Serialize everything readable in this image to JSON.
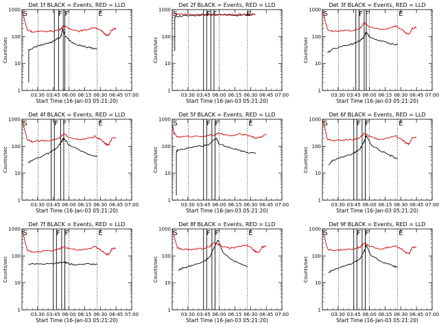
{
  "chart_data": [
    {
      "type": "line",
      "title": "Det 1f BLACK = Events, RED = LLD",
      "xlabel": "Start Time (16-Jan-03 05:21:20)",
      "ylabel": "Counts/sec",
      "y_scale": "log",
      "ylim": [
        1,
        1000
      ],
      "y_ticks": [
        "1",
        "10",
        "100",
        "1000"
      ],
      "xlim_minutes": [
        0,
        105
      ],
      "x_ticks": [
        "03:30",
        "03:45",
        "06:00",
        "06:15",
        "06:30",
        "06:45",
        "07:00"
      ],
      "markers": [
        {
          "label": "S",
          "t": 0
        },
        {
          "label": "F",
          "t": 34
        },
        {
          "label": "F",
          "t": 40
        },
        {
          "label": "E",
          "t": 72
        }
      ],
      "vlines_solid": [
        31,
        35,
        39.5,
        41
      ],
      "vlines_dotted": [
        15.5,
        45,
        72
      ],
      "series": [
        {
          "name": "Events",
          "color": "#000000",
          "x": [
            6.5,
            6.5,
            7,
            15,
            22,
            28,
            33,
            37,
            39,
            41,
            45,
            50,
            58,
            65,
            72
          ],
          "y": [
            2,
            30,
            32,
            45,
            55,
            60,
            80,
            95,
            200,
            110,
            75,
            55,
            45,
            38,
            35
          ]
        },
        {
          "name": "LLD",
          "color": "#cc0000",
          "x": [
            0,
            2,
            5,
            10,
            20,
            30,
            36,
            40,
            45,
            55,
            62,
            70,
            76,
            80,
            83,
            86,
            90
          ],
          "y": [
            1000,
            500,
            180,
            150,
            155,
            160,
            180,
            250,
            200,
            160,
            180,
            220,
            160,
            120,
            110,
            180,
            200
          ]
        }
      ]
    },
    {
      "type": "line",
      "title": "Det 2f BLACK = Events, RED = LLD",
      "xlabel": "Start Time (16-Jan-03 05:21:20)",
      "ylabel": "Counts/sec",
      "y_scale": "log",
      "ylim": [
        1,
        1000
      ],
      "y_ticks": [
        "1",
        "10",
        "100",
        "1000"
      ],
      "xlim_minutes": [
        0,
        105
      ],
      "x_ticks": [
        "03:30",
        "03:45",
        "06:00",
        "06:15",
        "06:30",
        "06:45",
        "07:00"
      ],
      "markers": [
        {
          "label": "S",
          "t": 0
        },
        {
          "label": "F",
          "t": 32
        },
        {
          "label": "F",
          "t": 38
        },
        {
          "label": "E",
          "t": 70
        }
      ],
      "vlines_solid": [
        30,
        33,
        37,
        40
      ],
      "vlines_dotted": [
        15.5,
        45,
        72
      ],
      "series": [
        {
          "name": "Events",
          "color": "#000000",
          "x": [
            2.5,
            2.5,
            3,
            10,
            20,
            30,
            38,
            45,
            55,
            65,
            72,
            78
          ],
          "y": [
            30,
            500,
            560,
            580,
            600,
            620,
            640,
            650,
            640,
            620,
            650,
            660
          ]
        },
        {
          "name": "LLD",
          "color": "#cc0000",
          "x": [
            0,
            10,
            20,
            30,
            40,
            50,
            60,
            70,
            80
          ],
          "y": [
            700,
            680,
            660,
            650,
            650,
            640,
            660,
            650,
            640
          ]
        }
      ]
    },
    {
      "type": "line",
      "title": "Det 3f BLACK = Events, RED = LLD",
      "xlabel": "Start Time (16-Jan-03 05:21:20)",
      "ylabel": "Counts/sec",
      "y_scale": "log",
      "ylim": [
        1,
        1000
      ],
      "y_ticks": [
        "1",
        "10",
        "100",
        "1000"
      ],
      "xlim_minutes": [
        0,
        105
      ],
      "x_ticks": [
        "03:30",
        "03:45",
        "06:00",
        "06:15",
        "06:30",
        "06:45",
        "07:00"
      ],
      "markers": [
        {
          "label": "S",
          "t": 0
        },
        {
          "label": "F",
          "t": 34
        },
        {
          "label": "F",
          "t": 40
        },
        {
          "label": "E",
          "t": 72
        }
      ],
      "vlines_solid": [
        32,
        35,
        40,
        42
      ],
      "vlines_dotted": [
        15.5,
        45,
        72
      ],
      "series": [
        {
          "name": "Events",
          "color": "#000000",
          "x": [
            5,
            10,
            20,
            30,
            36,
            40,
            42,
            46,
            55,
            65,
            72
          ],
          "y": [
            25,
            35,
            45,
            55,
            70,
            100,
            150,
            90,
            70,
            55,
            50
          ]
        },
        {
          "name": "LLD",
          "color": "#cc0000",
          "x": [
            0,
            2,
            5,
            10,
            20,
            30,
            36,
            40,
            45,
            55,
            62,
            70,
            76,
            80,
            83,
            86,
            90
          ],
          "y": [
            1000,
            500,
            180,
            160,
            160,
            170,
            200,
            320,
            230,
            180,
            200,
            250,
            180,
            130,
            120,
            200,
            220
          ]
        }
      ]
    },
    {
      "type": "line",
      "title": "Det 4f BLACK = Events, RED = LLD",
      "xlabel": "Start Time (16-Jan-03 05:21:20)",
      "ylabel": "Counts/sec",
      "y_scale": "log",
      "ylim": [
        1,
        1000
      ],
      "y_ticks": [
        "1",
        "10",
        "100",
        "1000"
      ],
      "xlim_minutes": [
        0,
        105
      ],
      "x_ticks": [
        "03:30",
        "03:45",
        "06:00",
        "06:15",
        "06:30",
        "06:45",
        "07:00"
      ],
      "markers": [
        {
          "label": "S",
          "t": 0
        },
        {
          "label": "F",
          "t": 30
        },
        {
          "label": "F",
          "t": 38
        },
        {
          "label": "E",
          "t": 72
        }
      ],
      "vlines_solid": [
        28,
        31,
        37,
        40
      ],
      "vlines_dotted": [
        15.5,
        45,
        72
      ],
      "series": [
        {
          "name": "Events",
          "color": "#000000",
          "x": [
            6,
            10,
            20,
            28,
            34,
            38,
            40,
            45,
            55,
            65,
            72
          ],
          "y": [
            25,
            30,
            45,
            60,
            90,
            150,
            200,
            110,
            70,
            50,
            40
          ]
        },
        {
          "name": "LLD",
          "color": "#cc0000",
          "x": [
            0,
            2,
            5,
            10,
            20,
            30,
            36,
            40,
            45,
            55,
            62,
            70,
            76,
            80,
            83,
            86,
            90
          ],
          "y": [
            1000,
            500,
            180,
            150,
            160,
            170,
            200,
            280,
            220,
            170,
            190,
            230,
            170,
            120,
            110,
            190,
            210
          ]
        }
      ]
    },
    {
      "type": "line",
      "title": "Det 5f BLACK = Events, RED = LLD",
      "xlabel": "Start Time (16-Jan-03 05:21:20)",
      "ylabel": "Counts/sec",
      "y_scale": "log",
      "ylim": [
        1,
        1000
      ],
      "y_ticks": [
        "1",
        "10",
        "100",
        "1000"
      ],
      "xlim_minutes": [
        0,
        105
      ],
      "x_ticks": [
        "03:30",
        "03:45",
        "06:00",
        "06:15",
        "06:30",
        "06:45",
        "07:00"
      ],
      "markers": [
        {
          "label": "S",
          "t": 0
        },
        {
          "label": "F",
          "t": 32
        },
        {
          "label": "F",
          "t": 40
        },
        {
          "label": "E",
          "t": 72
        }
      ],
      "vlines_solid": [
        30,
        33,
        38,
        41
      ],
      "vlines_dotted": [
        15.5,
        45,
        72
      ],
      "series": [
        {
          "name": "Events",
          "color": "#000000",
          "x": [
            4,
            4,
            5,
            15,
            25,
            35,
            42,
            45,
            55,
            65,
            72,
            80
          ],
          "y": [
            1.5,
            60,
            70,
            85,
            100,
            110,
            200,
            120,
            90,
            70,
            60,
            55
          ]
        },
        {
          "name": "LLD",
          "color": "#cc0000",
          "x": [
            0,
            2,
            5,
            15,
            30,
            40,
            45,
            55,
            65,
            75,
            80,
            85,
            90
          ],
          "y": [
            600,
            300,
            220,
            230,
            240,
            260,
            300,
            240,
            280,
            240,
            200,
            220,
            280
          ]
        }
      ]
    },
    {
      "type": "line",
      "title": "Det 6f BLACK = Events, RED = LLD",
      "xlabel": "Start Time (16-Jan-03 05:21:20)",
      "ylabel": "Counts/sec",
      "y_scale": "log",
      "ylim": [
        1,
        1000
      ],
      "y_ticks": [
        "1",
        "10",
        "100",
        "1000"
      ],
      "xlim_minutes": [
        0,
        105
      ],
      "x_ticks": [
        "03:30",
        "03:45",
        "06:00",
        "06:15",
        "06:30",
        "06:45",
        "07:00"
      ],
      "markers": [
        {
          "label": "S",
          "t": 0
        },
        {
          "label": "F",
          "t": 32
        },
        {
          "label": "F",
          "t": 40
        },
        {
          "label": "E",
          "t": 72
        }
      ],
      "vlines_solid": [
        30,
        33,
        38,
        41
      ],
      "vlines_dotted": [
        15.5,
        45,
        72
      ],
      "series": [
        {
          "name": "Events",
          "color": "#000000",
          "x": [
            6,
            10,
            20,
            30,
            36,
            40,
            42,
            46,
            55,
            65,
            72
          ],
          "y": [
            20,
            30,
            40,
            55,
            80,
            150,
            250,
            120,
            70,
            45,
            35
          ]
        },
        {
          "name": "LLD",
          "color": "#cc0000",
          "x": [
            0,
            2,
            5,
            10,
            20,
            30,
            36,
            40,
            45,
            55,
            62,
            70,
            76,
            80,
            83,
            86,
            90
          ],
          "y": [
            1000,
            500,
            180,
            160,
            170,
            180,
            210,
            300,
            230,
            180,
            200,
            240,
            180,
            130,
            120,
            200,
            220
          ]
        }
      ]
    },
    {
      "type": "line",
      "title": "Det 7f BLACK = Events, RED = LLD",
      "xlabel": "Start Time (16-Jan-03 05:21:20)",
      "ylabel": "Counts/sec",
      "y_scale": "log",
      "ylim": [
        1,
        1000
      ],
      "y_ticks": [
        "1",
        "10",
        "100",
        "1000"
      ],
      "xlim_minutes": [
        0,
        105
      ],
      "x_ticks": [
        "03:30",
        "03:45",
        "06:00",
        "06:15",
        "06:30",
        "06:45",
        "07:00"
      ],
      "markers": [
        {
          "label": "S",
          "t": 0
        },
        {
          "label": "F",
          "t": 32
        },
        {
          "label": "F",
          "t": 40
        },
        {
          "label": "E",
          "t": 72
        }
      ],
      "vlines_solid": [
        30,
        33,
        38,
        41
      ],
      "vlines_dotted": [
        15.5,
        45,
        72
      ],
      "series": [
        {
          "name": "Events",
          "color": "#000000",
          "x": [
            6,
            15,
            25,
            35,
            41,
            45,
            55,
            65,
            72
          ],
          "y": [
            50,
            52,
            50,
            55,
            60,
            50,
            48,
            50,
            48
          ]
        },
        {
          "name": "LLD",
          "color": "#cc0000",
          "x": [
            0,
            2,
            5,
            10,
            20,
            30,
            36,
            40,
            45,
            55,
            62,
            70,
            76,
            80,
            83,
            86,
            90
          ],
          "y": [
            1000,
            500,
            160,
            140,
            150,
            160,
            180,
            220,
            190,
            160,
            180,
            220,
            160,
            120,
            110,
            180,
            200
          ]
        }
      ]
    },
    {
      "type": "line",
      "title": "Det 8f BLACK = Events, RED = LLD",
      "xlabel": "Start Time (16-Jan-03 05:21:20)",
      "ylabel": "Counts/sec",
      "y_scale": "log",
      "ylim": [
        1,
        1000
      ],
      "y_ticks": [
        "1",
        "10",
        "100",
        "1000"
      ],
      "xlim_minutes": [
        0,
        105
      ],
      "x_ticks": [
        "03:30",
        "03:45",
        "06:00",
        "06:15",
        "06:30",
        "06:45",
        "07:00"
      ],
      "markers": [
        {
          "label": "S",
          "t": 0
        },
        {
          "label": "F",
          "t": 32
        },
        {
          "label": "F",
          "t": 40
        },
        {
          "label": "E",
          "t": 72
        }
      ],
      "vlines_solid": [
        30,
        33,
        38,
        41
      ],
      "vlines_dotted": [
        15.5,
        45,
        72
      ],
      "series": [
        {
          "name": "Events",
          "color": "#000000",
          "x": [
            6,
            10,
            20,
            30,
            36,
            40,
            44,
            48,
            55,
            65,
            72
          ],
          "y": [
            30,
            35,
            45,
            60,
            90,
            200,
            400,
            150,
            80,
            50,
            40
          ]
        },
        {
          "name": "LLD",
          "color": "#cc0000",
          "x": [
            0,
            2,
            5,
            10,
            20,
            30,
            36,
            40,
            45,
            55,
            62,
            70,
            76,
            80,
            83,
            86,
            90
          ],
          "y": [
            1000,
            500,
            200,
            170,
            180,
            190,
            220,
            320,
            250,
            190,
            210,
            260,
            190,
            140,
            130,
            210,
            230
          ]
        }
      ]
    },
    {
      "type": "line",
      "title": "Det 9f BLACK = Events, RED = LLD",
      "xlabel": "Start Time (16-Jan-03 05:21:20)",
      "ylabel": "Counts/sec",
      "y_scale": "log",
      "ylim": [
        1,
        1000
      ],
      "y_ticks": [
        "1",
        "10",
        "100",
        "1000"
      ],
      "xlim_minutes": [
        0,
        105
      ],
      "x_ticks": [
        "03:30",
        "03:45",
        "06:00",
        "06:15",
        "06:30",
        "06:45",
        "07:00"
      ],
      "markers": [
        {
          "label": "S",
          "t": 0
        },
        {
          "label": "F",
          "t": 32
        },
        {
          "label": "F",
          "t": 40
        },
        {
          "label": "E",
          "t": 72
        }
      ],
      "vlines_solid": [
        30,
        33,
        38,
        41
      ],
      "vlines_dotted": [
        15.5,
        45,
        72
      ],
      "series": [
        {
          "name": "Events",
          "color": "#000000",
          "x": [
            6,
            10,
            20,
            30,
            36,
            40,
            42,
            46,
            55,
            65,
            72
          ],
          "y": [
            25,
            30,
            40,
            55,
            80,
            150,
            250,
            110,
            65,
            45,
            38
          ]
        },
        {
          "name": "LLD",
          "color": "#cc0000",
          "x": [
            0,
            2,
            5,
            10,
            20,
            30,
            36,
            40,
            45,
            55,
            62,
            70,
            76,
            80,
            83,
            86,
            90
          ],
          "y": [
            1000,
            500,
            180,
            160,
            170,
            180,
            210,
            300,
            230,
            180,
            200,
            240,
            180,
            130,
            120,
            200,
            220
          ]
        }
      ]
    }
  ]
}
